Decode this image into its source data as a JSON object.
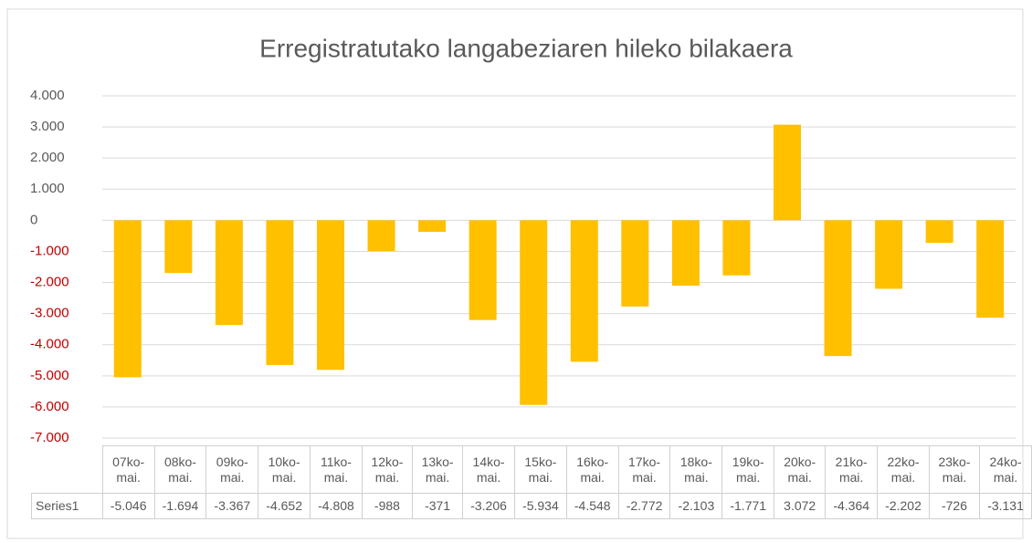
{
  "chart_data": {
    "type": "bar",
    "title": "Erregistratutako langabeziaren hileko bilakaera",
    "categories": [
      "07ko-mai.",
      "08ko-mai.",
      "09ko-mai.",
      "10ko-mai.",
      "11ko-mai.",
      "12ko-mai.",
      "13ko-mai.",
      "14ko-mai.",
      "15ko-mai.",
      "16ko-mai.",
      "17ko-mai.",
      "18ko-mai.",
      "19ko-mai.",
      "20ko-mai.",
      "21ko-mai.",
      "22ko-mai.",
      "23ko-mai.",
      "24ko-mai."
    ],
    "series": [
      {
        "name": "Series1",
        "color": "#ffc000",
        "values": [
          -5046,
          -1694,
          -3367,
          -4652,
          -4808,
          -988,
          -371,
          -3206,
          -5934,
          -4548,
          -2772,
          -2103,
          -1771,
          3072,
          -4364,
          -2202,
          -726,
          -3131
        ],
        "value_labels": [
          "-5.046",
          "-1.694",
          "-3.367",
          "-4.652",
          "-4.808",
          "-988",
          "-371",
          "-3.206",
          "-5.934",
          "-4.548",
          "-2.772",
          "-2.103",
          "-1.771",
          "3.072",
          "-4.364",
          "-2.202",
          "-726",
          "-3.131"
        ]
      }
    ],
    "ylim": [
      -7000,
      4000
    ],
    "yticks": [
      {
        "value": 4000,
        "label": "4.000"
      },
      {
        "value": 3000,
        "label": "3.000"
      },
      {
        "value": 2000,
        "label": "2.000"
      },
      {
        "value": 1000,
        "label": "1.000"
      },
      0,
      {
        "value": -1000,
        "label": "-1.000"
      },
      {
        "value": -2000,
        "label": "-2.000"
      },
      {
        "value": -3000,
        "label": "-3.000"
      },
      {
        "value": -4000,
        "label": "-4.000"
      },
      {
        "value": -5000,
        "label": "-5.000"
      },
      {
        "value": -6000,
        "label": "-6.000"
      },
      {
        "value": -7000,
        "label": "-7.000"
      }
    ],
    "grid": true,
    "negative_tick_color": "#c00000",
    "data_table": true
  }
}
